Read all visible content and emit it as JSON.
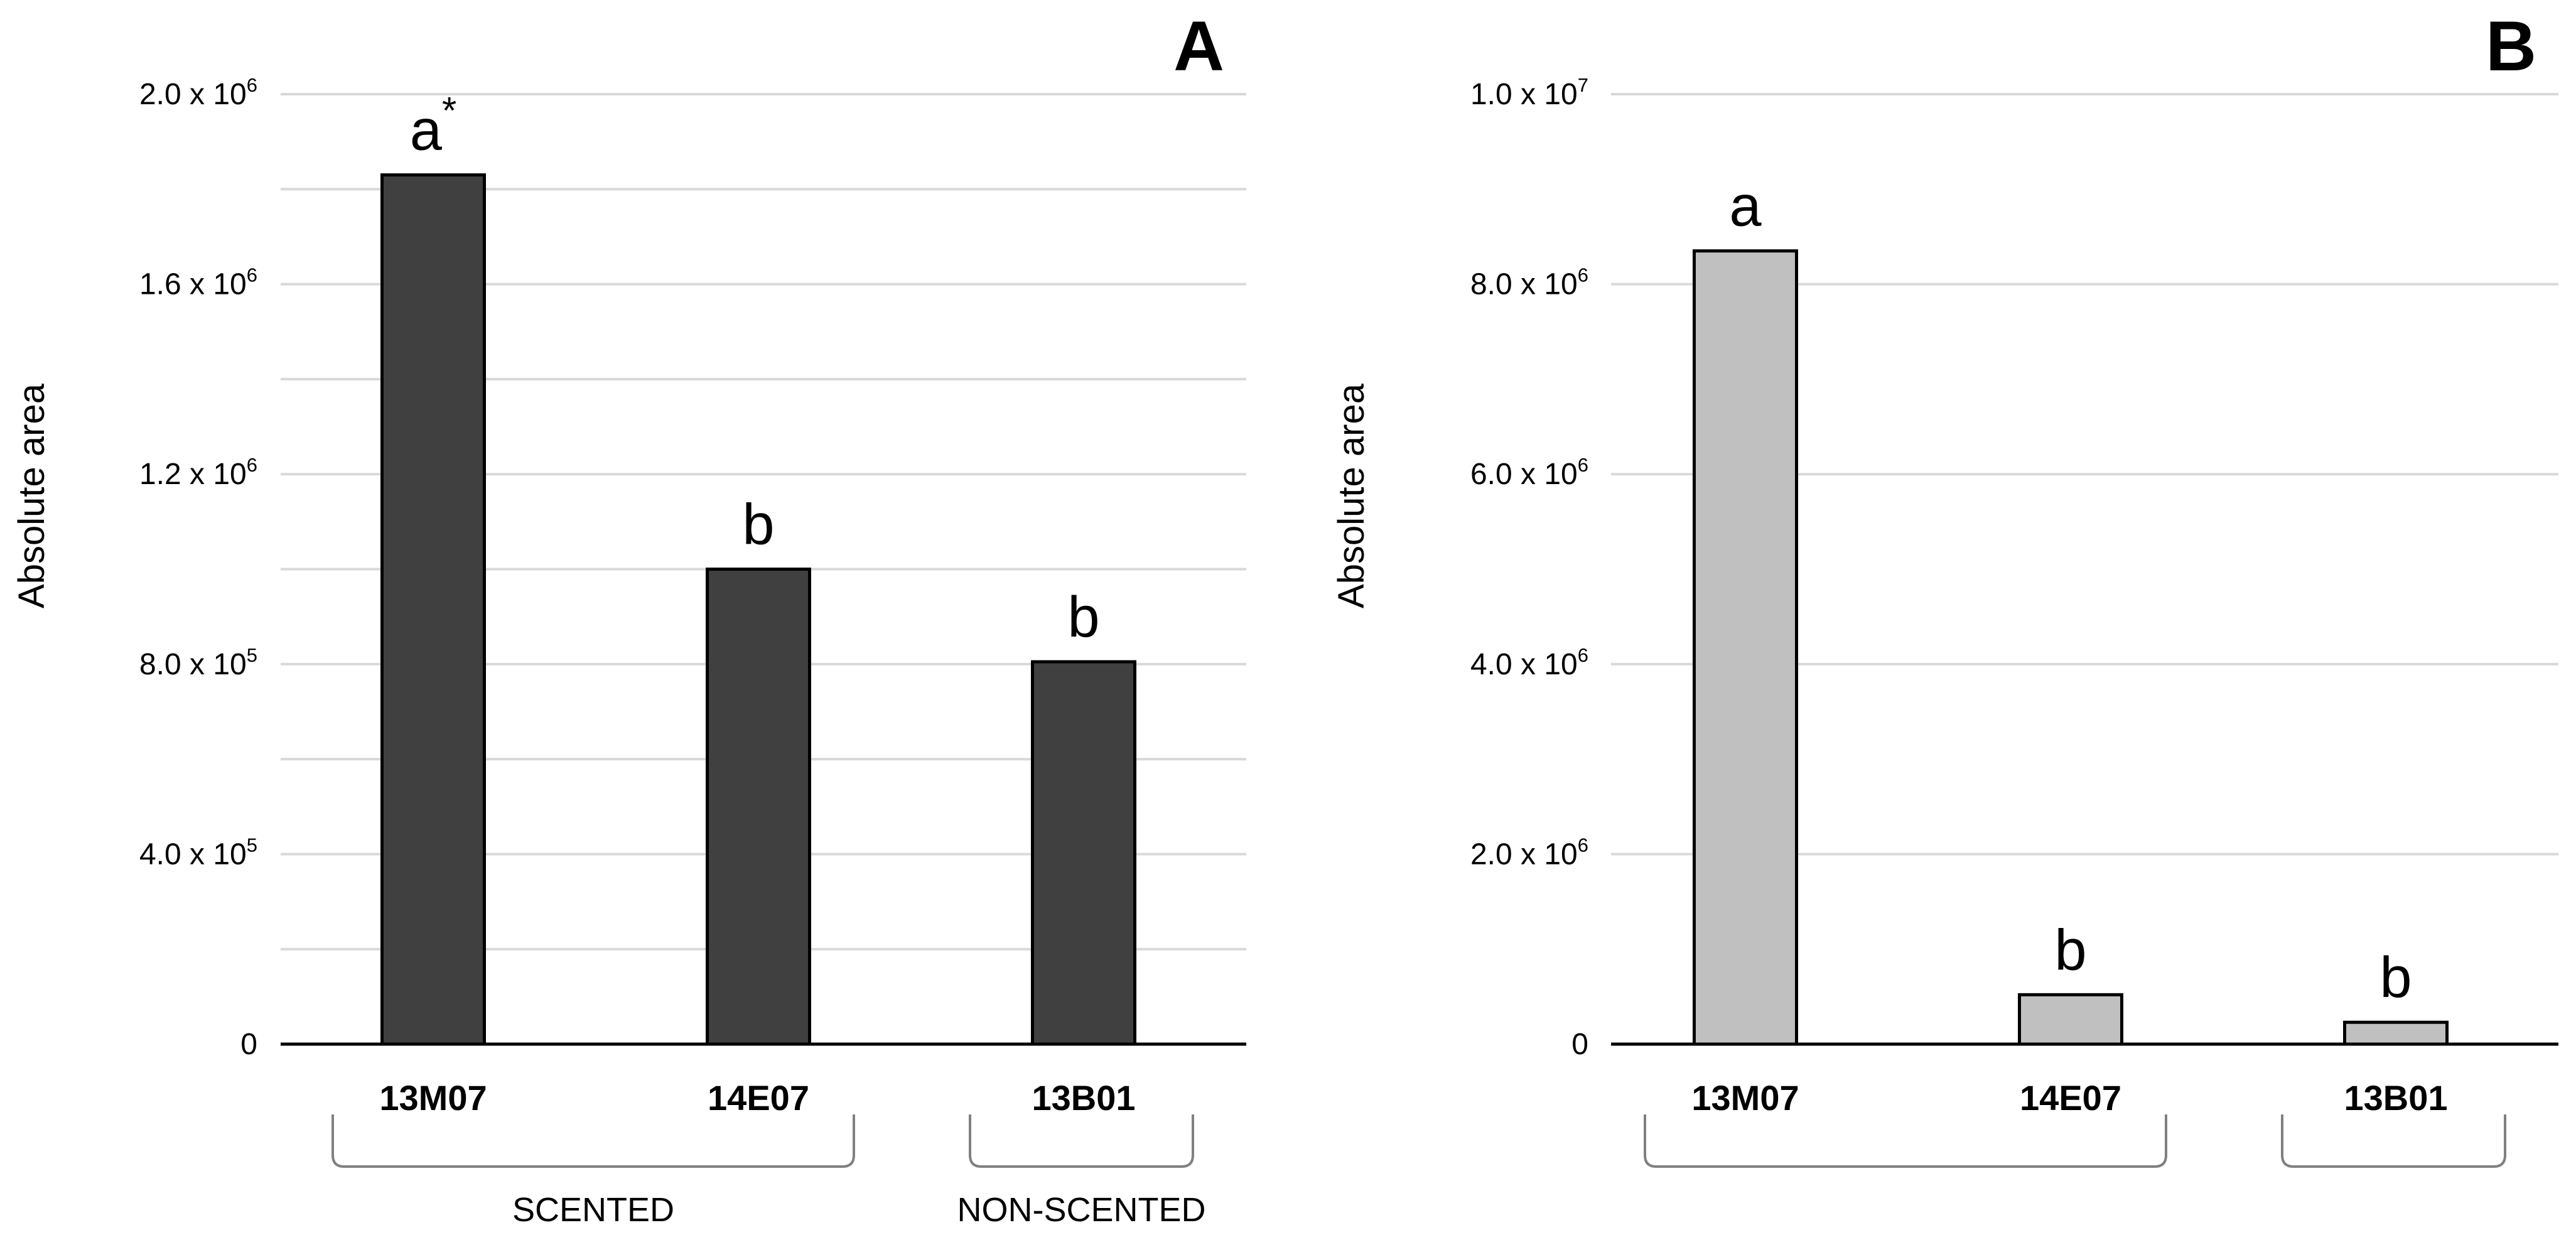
{
  "chart_data": [
    {
      "type": "bar",
      "panel": "A",
      "title": "A",
      "xlabel": "",
      "ylabel": "Absolute area",
      "ylim": [
        0,
        2000000
      ],
      "categories": [
        "13M07",
        "14E07",
        "13B01"
      ],
      "values": [
        1830000,
        1000000,
        805000
      ],
      "significance_labels": [
        {
          "base": "a",
          "sup": "*"
        },
        {
          "base": "b",
          "sup": ""
        },
        {
          "base": "b",
          "sup": ""
        }
      ],
      "bar_color": "#404040",
      "grid": true,
      "yticks": [
        {
          "value": 0,
          "base": "0",
          "exp": ""
        },
        {
          "value": 400000,
          "base": "4.0 x 10",
          "exp": "5"
        },
        {
          "value": 800000,
          "base": "8.0 x 10",
          "exp": "5"
        },
        {
          "value": 1200000,
          "base": "1.2 x 10",
          "exp": "6"
        },
        {
          "value": 1600000,
          "base": "1.6 x 10",
          "exp": "6"
        },
        {
          "value": 2000000,
          "base": "2.0 x 10",
          "exp": "6"
        }
      ],
      "gridline_values": [
        200000,
        400000,
        600000,
        800000,
        1000000,
        1200000,
        1400000,
        1600000,
        1800000,
        2000000
      ],
      "groups": [
        {
          "label": "SCENTED",
          "from": 0,
          "to": 1
        },
        {
          "label": "NON-SCENTED",
          "from": 2,
          "to": 2
        }
      ]
    },
    {
      "type": "bar",
      "panel": "B",
      "title": "B",
      "xlabel": "",
      "ylabel": "Absolute area",
      "ylim": [
        0,
        10000000
      ],
      "categories": [
        "13M07",
        "14E07",
        "13B01"
      ],
      "values": [
        8350000,
        520000,
        230000
      ],
      "significance_labels": [
        {
          "base": "a",
          "sup": ""
        },
        {
          "base": "b",
          "sup": ""
        },
        {
          "base": "b",
          "sup": ""
        }
      ],
      "bar_color": "#c0c0c0",
      "grid": true,
      "yticks": [
        {
          "value": 0,
          "base": "0",
          "exp": ""
        },
        {
          "value": 2000000,
          "base": "2.0 x 10",
          "exp": "6"
        },
        {
          "value": 4000000,
          "base": "4.0 x 10",
          "exp": "6"
        },
        {
          "value": 6000000,
          "base": "6.0 x 10",
          "exp": "6"
        },
        {
          "value": 8000000,
          "base": "8.0 x 10",
          "exp": "6"
        },
        {
          "value": 10000000,
          "base": "1.0 x 10",
          "exp": "7"
        }
      ],
      "gridline_values": [
        2000000,
        4000000,
        6000000,
        8000000,
        10000000
      ],
      "groups": [
        {
          "label": "",
          "from": 0,
          "to": 1
        },
        {
          "label": "",
          "from": 2,
          "to": 2
        }
      ]
    }
  ]
}
